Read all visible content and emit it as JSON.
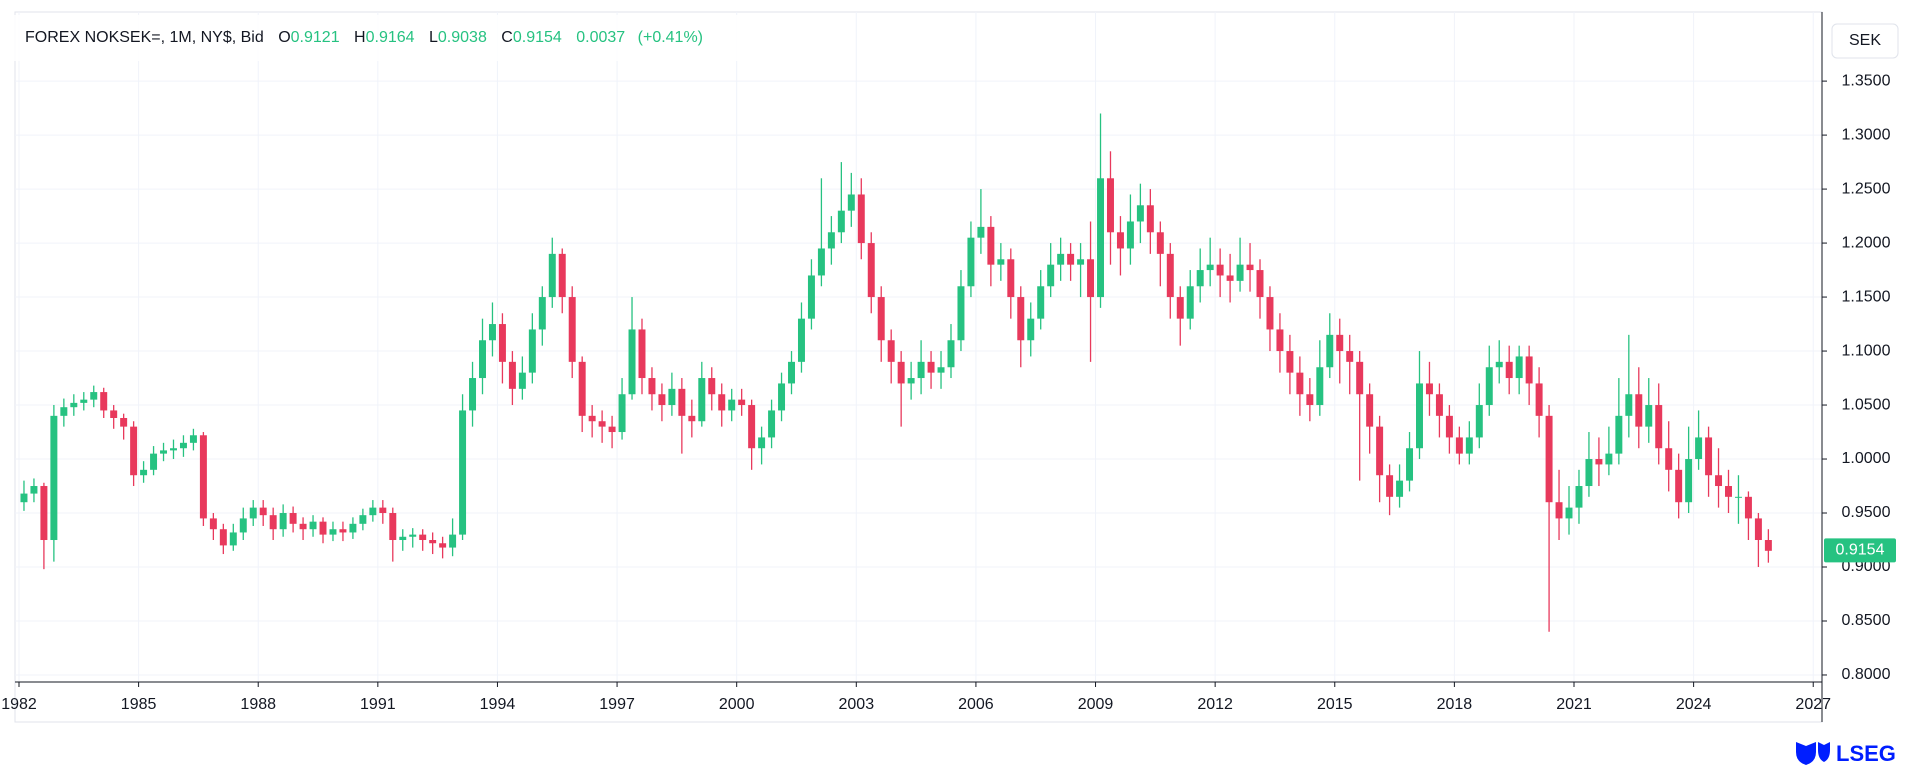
{
  "chart_data": {
    "type": "candlestick",
    "title": "FOREX NOKSEK=, 1M, NY$, Bid",
    "ohlc_labels": [
      "O",
      "H",
      "L",
      "C"
    ],
    "ohlc_values": [
      0.9121,
      0.9164,
      0.9038,
      0.9154
    ],
    "change": 0.0037,
    "change_pct_label": "(+0.41%)",
    "currency": "SEK",
    "brand": "LSEG",
    "up_color": "#26c281",
    "down_color": "#e8395c",
    "grid": true,
    "xlim": [
      1981.9,
      2027.22
    ],
    "xticks": [
      1982,
      1985,
      1988,
      1991,
      1994,
      1997,
      2000,
      2003,
      2006,
      2009,
      2012,
      2015,
      2018,
      2021,
      2024,
      2027
    ],
    "ylim": [
      0.7935,
      1.414
    ],
    "yticks": [
      {
        "value": 0.8,
        "label": "0.8000"
      },
      {
        "value": 0.85,
        "label": "0.8500"
      },
      {
        "value": 0.9,
        "label": "0.9000"
      },
      {
        "value": 0.95,
        "label": "0.9500"
      },
      {
        "value": 1,
        "label": "1.0000"
      },
      {
        "value": 1.05,
        "label": "1.0500"
      },
      {
        "value": 1.1,
        "label": "1.1000"
      },
      {
        "value": 1.15,
        "label": "1.1500"
      },
      {
        "value": 1.2,
        "label": "1.2000"
      },
      {
        "value": 1.25,
        "label": "1.2500"
      },
      {
        "value": 1.3,
        "label": "1.3000"
      },
      {
        "value": 1.35,
        "label": "1.3500"
      }
    ],
    "x": [
      1982,
      1982.25,
      1982.5,
      1982.75,
      1983,
      1983.25,
      1983.5,
      1983.75,
      1984,
      1984.25,
      1984.5,
      1984.75,
      1985,
      1985.25,
      1985.5,
      1985.75,
      1986,
      1986.25,
      1986.5,
      1986.75,
      1987,
      1987.25,
      1987.5,
      1987.75,
      1988,
      1988.25,
      1988.5,
      1988.75,
      1989,
      1989.25,
      1989.5,
      1989.75,
      1990,
      1990.25,
      1990.5,
      1990.75,
      1991,
      1991.25,
      1991.5,
      1991.75,
      1992,
      1992.25,
      1992.5,
      1992.75,
      1993,
      1993.25,
      1993.5,
      1993.75,
      1994,
      1994.25,
      1994.5,
      1994.75,
      1995,
      1995.25,
      1995.5,
      1995.75,
      1996,
      1996.25,
      1996.5,
      1996.75,
      1997,
      1997.25,
      1997.5,
      1997.75,
      1998,
      1998.25,
      1998.5,
      1998.75,
      1999,
      1999.25,
      1999.5,
      1999.75,
      2000,
      2000.25,
      2000.5,
      2000.75,
      2001,
      2001.25,
      2001.5,
      2001.75,
      2002,
      2002.25,
      2002.5,
      2002.75,
      2003,
      2003.25,
      2003.5,
      2003.75,
      2004,
      2004.25,
      2004.5,
      2004.75,
      2005,
      2005.25,
      2005.5,
      2005.75,
      2006,
      2006.25,
      2006.5,
      2006.75,
      2007,
      2007.25,
      2007.5,
      2007.75,
      2008,
      2008.25,
      2008.5,
      2008.75,
      2009,
      2009.25,
      2009.5,
      2009.75,
      2010,
      2010.25,
      2010.5,
      2010.75,
      2011,
      2011.25,
      2011.5,
      2011.75,
      2012,
      2012.25,
      2012.5,
      2012.75,
      2013,
      2013.25,
      2013.5,
      2013.75,
      2014,
      2014.25,
      2014.5,
      2014.75,
      2015,
      2015.25,
      2015.5,
      2015.75,
      2016,
      2016.25,
      2016.5,
      2016.75,
      2017,
      2017.25,
      2017.5,
      2017.75,
      2018,
      2018.25,
      2018.5,
      2018.75,
      2019,
      2019.25,
      2019.5,
      2019.75,
      2020,
      2020.25,
      2020.5,
      2020.75,
      2021,
      2021.25,
      2021.5,
      2021.75,
      2022,
      2022.25,
      2022.5,
      2022.75,
      2023,
      2023.25,
      2023.5,
      2023.75,
      2024,
      2024.25,
      2024.5,
      2024.75,
      2025,
      2025.25,
      2025.5,
      2025.75
    ],
    "open": [
      0.96,
      0.968,
      0.975,
      0.925,
      1.04,
      1.048,
      1.052,
      1.055,
      1.062,
      1.045,
      1.038,
      1.03,
      0.985,
      0.99,
      1.005,
      1.008,
      1.01,
      1.015,
      1.022,
      0.945,
      0.935,
      0.92,
      0.932,
      0.945,
      0.955,
      0.948,
      0.935,
      0.95,
      0.94,
      0.935,
      0.942,
      0.93,
      0.935,
      0.932,
      0.94,
      0.948,
      0.955,
      0.95,
      0.925,
      0.928,
      0.93,
      0.925,
      0.922,
      0.918,
      0.93,
      1.045,
      1.075,
      1.11,
      1.125,
      1.09,
      1.065,
      1.08,
      1.12,
      1.15,
      1.19,
      1.15,
      1.09,
      1.04,
      1.035,
      1.03,
      1.025,
      1.06,
      1.12,
      1.075,
      1.06,
      1.05,
      1.065,
      1.04,
      1.035,
      1.075,
      1.06,
      1.045,
      1.055,
      1.05,
      1.01,
      1.02,
      1.045,
      1.07,
      1.09,
      1.13,
      1.17,
      1.195,
      1.21,
      1.23,
      1.245,
      1.2,
      1.15,
      1.11,
      1.09,
      1.07,
      1.075,
      1.09,
      1.08,
      1.085,
      1.11,
      1.16,
      1.205,
      1.215,
      1.18,
      1.185,
      1.15,
      1.11,
      1.13,
      1.16,
      1.18,
      1.19,
      1.18,
      1.185,
      1.15,
      1.26,
      1.21,
      1.195,
      1.22,
      1.235,
      1.21,
      1.19,
      1.15,
      1.13,
      1.16,
      1.175,
      1.18,
      1.17,
      1.165,
      1.18,
      1.175,
      1.15,
      1.12,
      1.1,
      1.08,
      1.06,
      1.05,
      1.085,
      1.115,
      1.1,
      1.09,
      1.06,
      1.03,
      0.985,
      0.965,
      0.98,
      1.01,
      1.07,
      1.06,
      1.04,
      1.02,
      1.005,
      1.02,
      1.05,
      1.085,
      1.09,
      1.075,
      1.095,
      1.07,
      1.04,
      0.96,
      0.945,
      0.955,
      0.975,
      1.0,
      0.995,
      1.005,
      1.04,
      1.06,
      1.03,
      1.05,
      1.01,
      0.99,
      0.96,
      1.0,
      1.02,
      0.985,
      0.975,
      0.965,
      0.965,
      0.945,
      0.925
    ],
    "high": [
      0.98,
      0.982,
      0.978,
      1.05,
      1.056,
      1.06,
      1.062,
      1.068,
      1.066,
      1.05,
      1.042,
      1.035,
      0.998,
      1.012,
      1.015,
      1.018,
      1.022,
      1.028,
      1.025,
      0.95,
      0.94,
      0.94,
      0.955,
      0.962,
      0.962,
      0.955,
      0.958,
      0.956,
      0.946,
      0.948,
      0.946,
      0.942,
      0.942,
      0.946,
      0.954,
      0.962,
      0.962,
      0.955,
      0.935,
      0.936,
      0.935,
      0.932,
      0.928,
      0.945,
      1.06,
      1.09,
      1.13,
      1.145,
      1.135,
      1.1,
      1.095,
      1.135,
      1.16,
      1.205,
      1.195,
      1.16,
      1.095,
      1.05,
      1.045,
      1.04,
      1.075,
      1.15,
      1.13,
      1.085,
      1.07,
      1.08,
      1.075,
      1.055,
      1.09,
      1.085,
      1.07,
      1.065,
      1.065,
      1.055,
      1.03,
      1.055,
      1.08,
      1.1,
      1.145,
      1.185,
      1.26,
      1.225,
      1.275,
      1.265,
      1.26,
      1.21,
      1.16,
      1.12,
      1.1,
      1.09,
      1.11,
      1.1,
      1.1,
      1.125,
      1.175,
      1.22,
      1.25,
      1.225,
      1.2,
      1.195,
      1.16,
      1.145,
      1.175,
      1.2,
      1.205,
      1.2,
      1.2,
      1.22,
      1.32,
      1.285,
      1.225,
      1.245,
      1.255,
      1.25,
      1.22,
      1.2,
      1.16,
      1.175,
      1.195,
      1.205,
      1.195,
      1.19,
      1.205,
      1.2,
      1.185,
      1.16,
      1.135,
      1.115,
      1.095,
      1.075,
      1.11,
      1.135,
      1.13,
      1.115,
      1.1,
      1.07,
      1.04,
      0.995,
      0.995,
      1.025,
      1.1,
      1.09,
      1.07,
      1.05,
      1.03,
      1.035,
      1.07,
      1.105,
      1.11,
      1.105,
      1.105,
      1.105,
      1.085,
      1.05,
      0.99,
      0.975,
      0.99,
      1.025,
      1.02,
      1.03,
      1.075,
      1.115,
      1.085,
      1.075,
      1.07,
      1.035,
      1.005,
      1.03,
      1.045,
      1.03,
      1.01,
      0.99,
      0.985,
      0.97,
      0.95,
      0.935
    ],
    "low": [
      0.952,
      0.96,
      0.898,
      0.905,
      1.03,
      1.04,
      1.045,
      1.048,
      1.038,
      1.028,
      1.018,
      0.975,
      0.978,
      0.985,
      0.998,
      1.0,
      1.002,
      1.008,
      0.938,
      0.925,
      0.912,
      0.915,
      0.925,
      0.938,
      0.938,
      0.925,
      0.928,
      0.932,
      0.925,
      0.928,
      0.922,
      0.924,
      0.924,
      0.926,
      0.934,
      0.942,
      0.94,
      0.905,
      0.915,
      0.918,
      0.915,
      0.912,
      0.908,
      0.91,
      0.925,
      1.03,
      1.06,
      1.095,
      1.07,
      1.05,
      1.055,
      1.07,
      1.105,
      1.14,
      1.135,
      1.075,
      1.025,
      1.02,
      1.015,
      1.01,
      1.018,
      1.055,
      1.06,
      1.045,
      1.035,
      1.04,
      1.005,
      1.02,
      1.03,
      1.045,
      1.03,
      1.035,
      1.04,
      0.99,
      0.995,
      1.01,
      1.035,
      1.06,
      1.08,
      1.12,
      1.16,
      1.18,
      1.2,
      1.215,
      1.185,
      1.135,
      1.09,
      1.07,
      1.03,
      1.055,
      1.06,
      1.065,
      1.065,
      1.075,
      1.1,
      1.15,
      1.19,
      1.16,
      1.165,
      1.13,
      1.085,
      1.095,
      1.12,
      1.15,
      1.165,
      1.165,
      1.15,
      1.09,
      1.14,
      1.18,
      1.17,
      1.18,
      1.2,
      1.19,
      1.16,
      1.13,
      1.105,
      1.12,
      1.145,
      1.16,
      1.15,
      1.145,
      1.155,
      1.155,
      1.13,
      1.1,
      1.08,
      1.06,
      1.04,
      1.035,
      1.04,
      1.075,
      1.07,
      1.06,
      0.98,
      1.005,
      0.96,
      0.948,
      0.955,
      0.97,
      1.0,
      1.04,
      1.02,
      1.005,
      0.995,
      0.995,
      1.01,
      1.04,
      1.07,
      1.06,
      1.06,
      1.05,
      1.02,
      0.84,
      0.925,
      0.93,
      0.94,
      0.965,
      0.975,
      0.985,
      0.995,
      1.02,
      1.01,
      1.015,
      0.995,
      0.97,
      0.945,
      0.95,
      0.99,
      0.965,
      0.955,
      0.95,
      0.94,
      0.925,
      0.9,
      0.904
    ],
    "close": [
      0.968,
      0.975,
      0.925,
      1.04,
      1.048,
      1.052,
      1.055,
      1.062,
      1.045,
      1.038,
      1.03,
      0.985,
      0.99,
      1.005,
      1.008,
      1.01,
      1.015,
      1.022,
      0.945,
      0.935,
      0.92,
      0.932,
      0.945,
      0.955,
      0.948,
      0.935,
      0.95,
      0.94,
      0.935,
      0.942,
      0.93,
      0.935,
      0.932,
      0.94,
      0.948,
      0.955,
      0.95,
      0.925,
      0.928,
      0.93,
      0.925,
      0.922,
      0.918,
      0.93,
      1.045,
      1.075,
      1.11,
      1.125,
      1.09,
      1.065,
      1.08,
      1.12,
      1.15,
      1.19,
      1.15,
      1.09,
      1.04,
      1.035,
      1.03,
      1.025,
      1.06,
      1.12,
      1.075,
      1.06,
      1.05,
      1.065,
      1.04,
      1.035,
      1.075,
      1.06,
      1.045,
      1.055,
      1.05,
      1.01,
      1.02,
      1.045,
      1.07,
      1.09,
      1.13,
      1.17,
      1.195,
      1.21,
      1.23,
      1.245,
      1.2,
      1.15,
      1.11,
      1.09,
      1.07,
      1.075,
      1.09,
      1.08,
      1.085,
      1.11,
      1.16,
      1.205,
      1.215,
      1.18,
      1.185,
      1.15,
      1.11,
      1.13,
      1.16,
      1.18,
      1.19,
      1.18,
      1.185,
      1.15,
      1.26,
      1.21,
      1.195,
      1.22,
      1.235,
      1.21,
      1.19,
      1.15,
      1.13,
      1.16,
      1.175,
      1.18,
      1.17,
      1.165,
      1.18,
      1.175,
      1.15,
      1.12,
      1.1,
      1.08,
      1.06,
      1.05,
      1.085,
      1.115,
      1.1,
      1.09,
      1.06,
      1.03,
      0.985,
      0.965,
      0.98,
      1.01,
      1.07,
      1.06,
      1.04,
      1.02,
      1.005,
      1.02,
      1.05,
      1.085,
      1.09,
      1.075,
      1.095,
      1.07,
      1.04,
      0.96,
      0.945,
      0.955,
      0.975,
      1.0,
      0.995,
      1.005,
      1.04,
      1.06,
      1.03,
      1.05,
      1.01,
      0.99,
      0.96,
      1.0,
      1.02,
      0.985,
      0.975,
      0.965,
      0.965,
      0.945,
      0.925,
      0.915
    ]
  }
}
